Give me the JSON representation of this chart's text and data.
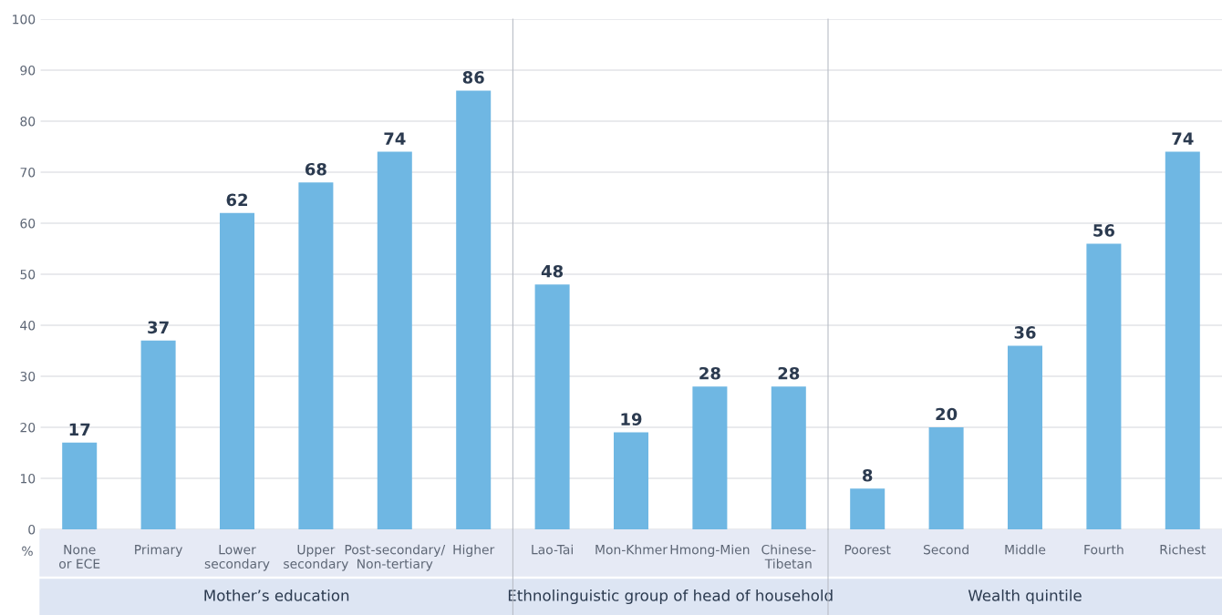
{
  "chart_data": [
    {
      "type": "bar",
      "xlabel": "Mother’s education",
      "ylabel": "%",
      "categories": [
        "None\nor ECE",
        "Primary",
        "Lower\nsecondary",
        "Upper\nsecondary",
        "Post-secondary/\nNon-tertiary",
        "Higher"
      ],
      "values": [
        17,
        37,
        62,
        68,
        74,
        86
      ],
      "color": "#6fb7e3",
      "data_labels": true,
      "ylim": [
        0,
        100
      ],
      "yticks": [
        0,
        10,
        20,
        30,
        40,
        50,
        60,
        70,
        80,
        90,
        100
      ],
      "grid": "y"
    },
    {
      "type": "bar",
      "xlabel": "Ethnolinguistic group of head of household",
      "categories": [
        "Lao-Tai",
        "Mon-Khmer",
        "Hmong-Mien",
        "Chinese-\nTibetan"
      ],
      "values": [
        48,
        19,
        28,
        28
      ],
      "color": "#6fb7e3",
      "data_labels": true,
      "ylim": [
        0,
        100
      ],
      "yticks": [
        0,
        10,
        20,
        30,
        40,
        50,
        60,
        70,
        80,
        90,
        100
      ],
      "grid": "y",
      "tick_labels": "x"
    },
    {
      "type": "bar",
      "xlabel": "Wealth quintile",
      "categories": [
        "Poorest",
        "Second",
        "Middle",
        "Fourth",
        "Richest"
      ],
      "values": [
        8,
        20,
        36,
        56,
        74
      ],
      "color": "#6fb7e3",
      "data_labels": true,
      "ylim": [
        0,
        100
      ],
      "yticks": [
        0,
        10,
        20,
        30,
        40,
        50,
        60,
        70,
        80,
        90,
        100
      ],
      "grid": "y",
      "tick_labels": "x"
    }
  ]
}
